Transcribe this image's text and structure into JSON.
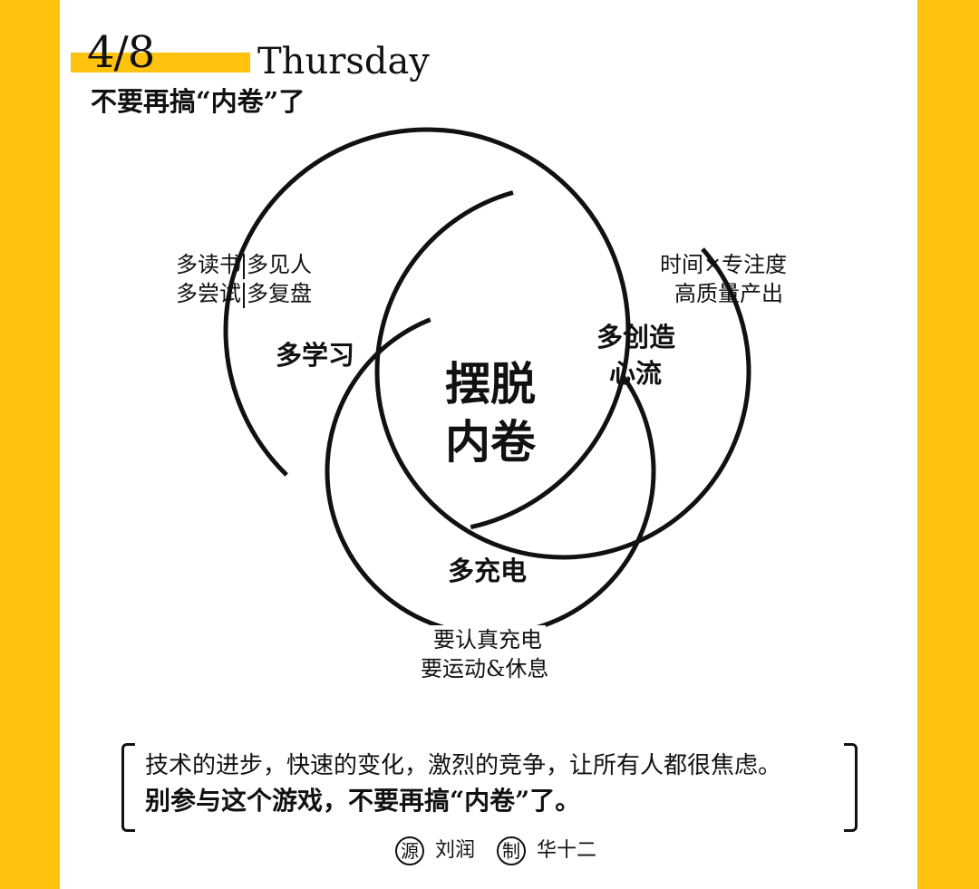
{
  "header": {
    "date": "4/8",
    "weekday": "Thursday",
    "subtitle": "不要再搞“内卷”了"
  },
  "diagram": {
    "center": {
      "line1": "摆脱",
      "line2": "内卷"
    },
    "left_circle": {
      "label": "多学习",
      "note_line1_a": "多读书",
      "note_line1_b": "多见人",
      "note_line2_a": "多尝试",
      "note_line2_b": "多复盘"
    },
    "right_circle": {
      "label_line1": "多创造",
      "label_line2": "心流",
      "note_line1": "时间×专注度",
      "note_line2": "高质量产出"
    },
    "bottom_circle": {
      "label": "多充电",
      "note_line1": "要认真充电",
      "note_line2": "要运动&休息"
    }
  },
  "quote": {
    "line1": "技术的进步，快速的变化，激烈的竞争，让所有人都很焦虑。",
    "line2": "别参与这个游戏，不要再搞“内卷”了。"
  },
  "credits": {
    "source_mark": "源",
    "source_name": "刘润",
    "maker_mark": "制",
    "maker_name": "华十二"
  },
  "colors": {
    "accent": "#ffc20e",
    "background": "#ffffff",
    "ink": "#111111"
  }
}
